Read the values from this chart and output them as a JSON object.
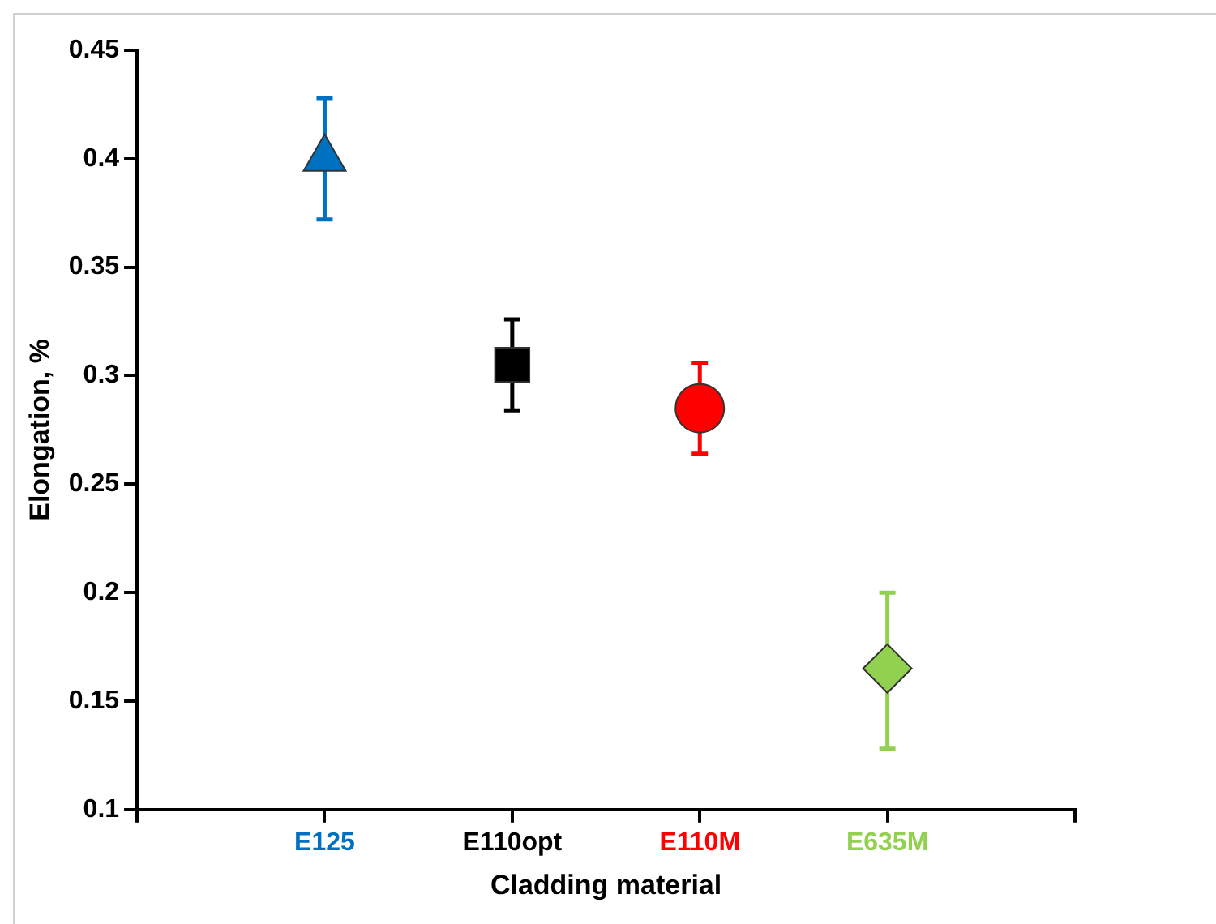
{
  "chart_data": {
    "type": "scatter",
    "xlabel": "Cladding material",
    "ylabel": "Elongation, %",
    "categories": [
      null,
      "E125",
      "E110opt",
      "E110M",
      "E635M",
      null
    ],
    "ylim": [
      0.1,
      0.45
    ],
    "yticks": [
      0.1,
      0.15,
      0.2,
      0.25,
      0.3,
      0.35,
      0.4,
      0.45
    ],
    "grid": false,
    "legend": false,
    "series": [
      {
        "color": "#0070c0",
        "marker": "triangle",
        "values": [
          null,
          0.4,
          null,
          null,
          null,
          null
        ],
        "errors": [
          null,
          0.028,
          null,
          null,
          null,
          null
        ]
      },
      {
        "color": "#000000",
        "marker": "square",
        "values": [
          null,
          null,
          0.305,
          null,
          null,
          null
        ],
        "errors": [
          null,
          null,
          0.021,
          null,
          null,
          null
        ]
      },
      {
        "color": "#ff0000",
        "marker": "circle",
        "values": [
          null,
          null,
          null,
          0.285,
          null,
          null
        ],
        "errors": [
          null,
          null,
          null,
          0.021,
          null,
          null
        ]
      },
      {
        "color": "#92d050",
        "marker": "diamond",
        "values": [
          null,
          null,
          null,
          null,
          0.165,
          null
        ],
        "errors": [
          null,
          null,
          null,
          null,
          [
            0.128,
            0.2
          ],
          null
        ]
      }
    ]
  }
}
